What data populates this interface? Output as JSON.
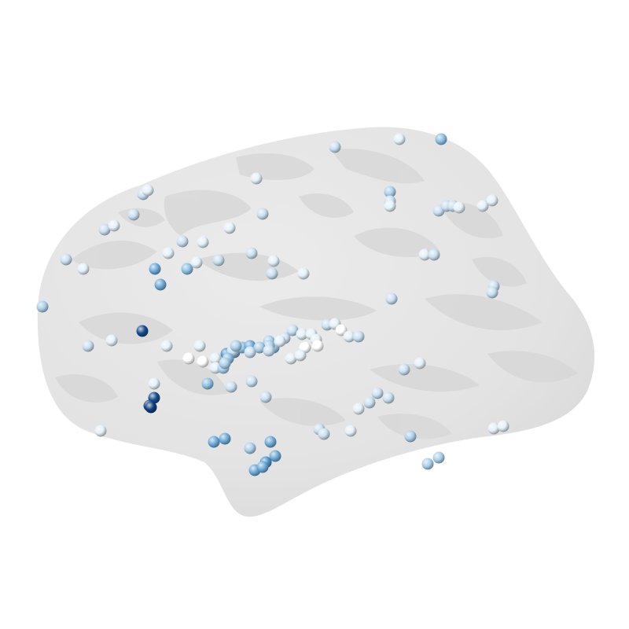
{
  "scene": {
    "background_color": "#ffffff",
    "surface_color": "#e3e3e3",
    "surface_pattern_color": "#d6d6d6",
    "electrode_colormap": [
      "#ffffff",
      "#c9e0f0",
      "#8cc0e3",
      "#4f95cc",
      "#2166ac",
      "#08306b"
    ]
  },
  "electrodes": [
    {
      "level": 0.2
    },
    {
      "level": 0.1
    },
    {
      "level": 0.4
    },
    {
      "level": 0.1
    },
    {
      "level": 0.2
    },
    {
      "level": 0.1
    },
    {
      "level": 0.3
    },
    {
      "level": 0.2
    },
    {
      "level": 0.1
    },
    {
      "level": 0.2
    },
    {
      "level": 0.2
    },
    {
      "level": 0.2
    },
    {
      "level": 0.1
    },
    {
      "level": 0.1
    },
    {
      "level": 0.1
    },
    {
      "level": 0.2
    },
    {
      "level": 0.2
    },
    {
      "level": 0.1
    },
    {
      "level": 0.2
    },
    {
      "level": 0.1
    },
    {
      "level": 0.1
    },
    {
      "level": 0.2
    },
    {
      "level": 0.5
    },
    {
      "level": 0.4
    },
    {
      "level": 0.5
    },
    {
      "level": 0.2
    },
    {
      "level": 0.1
    },
    {
      "level": 0.1
    },
    {
      "level": 0.1
    },
    {
      "level": 0.2
    },
    {
      "level": 0.2
    },
    {
      "level": 0.9
    },
    {
      "level": 0.3
    },
    {
      "level": 0.2
    },
    {
      "level": 0.1
    },
    {
      "level": 0.1
    },
    {
      "level": 0.1
    },
    {
      "level": 0.0
    },
    {
      "level": 0.0
    },
    {
      "level": 0.1
    },
    {
      "level": 0.6
    },
    {
      "level": 0.5
    },
    {
      "level": 0.4
    },
    {
      "level": 0.5
    },
    {
      "level": 0.3
    },
    {
      "level": 0.4
    },
    {
      "level": 0.2
    },
    {
      "level": 0.2
    },
    {
      "level": 0.1
    },
    {
      "level": 0.1
    },
    {
      "level": 0.1
    },
    {
      "level": 0.0
    },
    {
      "level": 0.0
    },
    {
      "level": 0.1
    },
    {
      "level": 0.1
    },
    {
      "level": 0.2
    },
    {
      "level": 0.1
    },
    {
      "level": 0.1
    },
    {
      "level": 0.2
    },
    {
      "level": 0.1
    },
    {
      "level": 0.0
    },
    {
      "level": 0.1
    },
    {
      "level": 0.2
    },
    {
      "level": 0.1
    },
    {
      "level": 0.4
    },
    {
      "level": 0.2
    },
    {
      "level": 0.2
    },
    {
      "level": 0.2
    },
    {
      "level": 0.9
    },
    {
      "level": 0.9
    },
    {
      "level": 0.95
    },
    {
      "level": 0.1
    },
    {
      "level": 0.5
    },
    {
      "level": 0.5
    },
    {
      "level": 0.3
    },
    {
      "level": 0.5
    },
    {
      "level": 0.5
    },
    {
      "level": 0.6
    },
    {
      "level": 0.5
    },
    {
      "level": 0.5
    },
    {
      "level": 0.2
    },
    {
      "level": 0.2
    },
    {
      "level": 0.1
    },
    {
      "level": 0.1
    },
    {
      "level": 0.2
    },
    {
      "level": 0.2
    },
    {
      "level": 0.2
    },
    {
      "level": 0.2
    },
    {
      "level": 0.1
    },
    {
      "level": 0.2
    },
    {
      "level": 0.3
    },
    {
      "level": 0.3
    },
    {
      "level": 0.3
    },
    {
      "level": 0.1
    },
    {
      "level": 0.1
    },
    {
      "level": 0.1
    },
    {
      "level": 0.2
    },
    {
      "level": 0.2
    },
    {
      "level": 0.2
    },
    {
      "level": 0.3
    },
    {
      "level": 0.1
    },
    {
      "level": 0.2
    },
    {
      "level": 0.4
    },
    {
      "level": 0.3
    },
    {
      "level": 0.2
    },
    {
      "level": 0.1
    },
    {
      "level": 0.3
    },
    {
      "level": 0.3
    },
    {
      "level": 0.3
    },
    {
      "level": 0.2
    }
  ]
}
